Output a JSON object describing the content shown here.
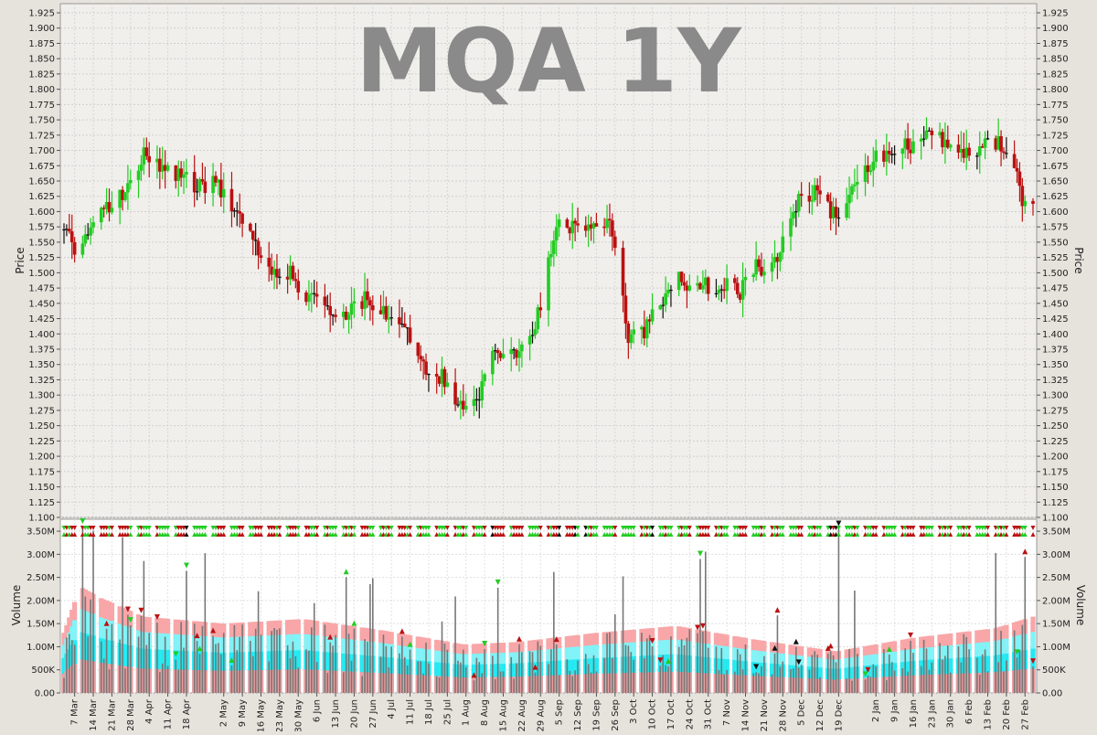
{
  "colors": {
    "up": "#22cc22",
    "down": "#bb1111",
    "neutral": "#111111",
    "price_bg": "#f0efeb",
    "volume_bg": "#ffffff",
    "band_outer": "#f8a6a8",
    "band_mid": "#80f4f8",
    "band_inner": "#22eaf2",
    "band_low": "#ef9ea0",
    "volume_bar": "#777777"
  },
  "chart_data": [
    {
      "type": "ohlc",
      "title": "MQA 1Y",
      "ylabel": "Price",
      "ylim": [
        1.1,
        1.925
      ],
      "ytick_step": 0.025,
      "grid": true,
      "x_labels": [
        "7 Mar",
        "14 Mar",
        "21 Mar",
        "28 Mar",
        "4 Apr",
        "11 Apr",
        "18 Apr",
        "2 May",
        "9 May",
        "16 May",
        "23 May",
        "30 May",
        "6 Jun",
        "13 Jun",
        "20 Jun",
        "27 Jun",
        "4 Jul",
        "11 Jul",
        "18 Jul",
        "25 Jul",
        "1 Aug",
        "8 Aug",
        "15 Aug",
        "22 Aug",
        "29 Aug",
        "5 Sep",
        "12 Sep",
        "19 Sep",
        "26 Sep",
        "3 Oct",
        "10 Oct",
        "17 Oct",
        "24 Oct",
        "31 Oct",
        "7 Nov",
        "14 Nov",
        "21 Nov",
        "28 Nov",
        "5 Dec",
        "12 Dec",
        "19 Dec",
        "2 Jan",
        "9 Jan",
        "16 Jan",
        "23 Jan",
        "30 Jan",
        "6 Feb",
        "13 Feb",
        "20 Feb",
        "27 Feb"
      ],
      "x_label_days": [
        4,
        11,
        18,
        25,
        32,
        39,
        46,
        60,
        67,
        74,
        81,
        88,
        95,
        102,
        109,
        116,
        123,
        130,
        137,
        144,
        151,
        158,
        165,
        172,
        179,
        186,
        193,
        200,
        207,
        214,
        221,
        228,
        235,
        242,
        249,
        256,
        263,
        270,
        277,
        284,
        291,
        305,
        312,
        319,
        326,
        333,
        340,
        347,
        354,
        361
      ],
      "price_anchors": [
        [
          0,
          1.57
        ],
        [
          4,
          1.54
        ],
        [
          8,
          1.55
        ],
        [
          12,
          1.59
        ],
        [
          18,
          1.61
        ],
        [
          25,
          1.64
        ],
        [
          30,
          1.7
        ],
        [
          36,
          1.68
        ],
        [
          44,
          1.66
        ],
        [
          50,
          1.64
        ],
        [
          56,
          1.65
        ],
        [
          60,
          1.63
        ],
        [
          64,
          1.6
        ],
        [
          70,
          1.58
        ],
        [
          74,
          1.53
        ],
        [
          80,
          1.49
        ],
        [
          86,
          1.5
        ],
        [
          90,
          1.46
        ],
        [
          96,
          1.45
        ],
        [
          102,
          1.43
        ],
        [
          108,
          1.44
        ],
        [
          114,
          1.46
        ],
        [
          120,
          1.44
        ],
        [
          126,
          1.42
        ],
        [
          130,
          1.39
        ],
        [
          134,
          1.36
        ],
        [
          138,
          1.32
        ],
        [
          142,
          1.33
        ],
        [
          146,
          1.29
        ],
        [
          150,
          1.28
        ],
        [
          154,
          1.28
        ],
        [
          158,
          1.33
        ],
        [
          162,
          1.37
        ],
        [
          166,
          1.36
        ],
        [
          172,
          1.38
        ],
        [
          178,
          1.43
        ],
        [
          182,
          1.52
        ],
        [
          186,
          1.58
        ],
        [
          192,
          1.57
        ],
        [
          198,
          1.57
        ],
        [
          204,
          1.59
        ],
        [
          208,
          1.52
        ],
        [
          212,
          1.4
        ],
        [
          216,
          1.39
        ],
        [
          220,
          1.42
        ],
        [
          226,
          1.46
        ],
        [
          230,
          1.5
        ],
        [
          236,
          1.47
        ],
        [
          242,
          1.48
        ],
        [
          248,
          1.48
        ],
        [
          254,
          1.47
        ],
        [
          260,
          1.51
        ],
        [
          266,
          1.51
        ],
        [
          270,
          1.55
        ],
        [
          276,
          1.62
        ],
        [
          282,
          1.63
        ],
        [
          288,
          1.6
        ],
        [
          294,
          1.61
        ],
        [
          300,
          1.67
        ],
        [
          306,
          1.69
        ],
        [
          312,
          1.7
        ],
        [
          318,
          1.71
        ],
        [
          324,
          1.72
        ],
        [
          330,
          1.72
        ],
        [
          336,
          1.7
        ],
        [
          342,
          1.7
        ],
        [
          348,
          1.71
        ],
        [
          352,
          1.71
        ],
        [
          356,
          1.7
        ],
        [
          360,
          1.62
        ],
        [
          364,
          1.62
        ]
      ]
    },
    {
      "type": "bar",
      "ylabel": "Volume",
      "ylim": [
        0,
        3600000
      ],
      "yticks": [
        0,
        500000,
        1000000,
        1500000,
        2000000,
        2500000,
        3000000,
        3500000
      ],
      "ytick_labels": [
        "0.00",
        "500K",
        "1.00M",
        "1.50M",
        "2.00M",
        "2.50M",
        "3.00M",
        "3.50M"
      ],
      "volume_anchors": [
        [
          0,
          1300000
        ],
        [
          6,
          2300000
        ],
        [
          14,
          2050000
        ],
        [
          30,
          1650000
        ],
        [
          60,
          1500000
        ],
        [
          90,
          1600000
        ],
        [
          120,
          1350000
        ],
        [
          150,
          1050000
        ],
        [
          170,
          1100000
        ],
        [
          200,
          1300000
        ],
        [
          230,
          1450000
        ],
        [
          260,
          1150000
        ],
        [
          290,
          900000
        ],
        [
          320,
          1200000
        ],
        [
          350,
          1400000
        ],
        [
          364,
          1650000
        ]
      ]
    }
  ]
}
